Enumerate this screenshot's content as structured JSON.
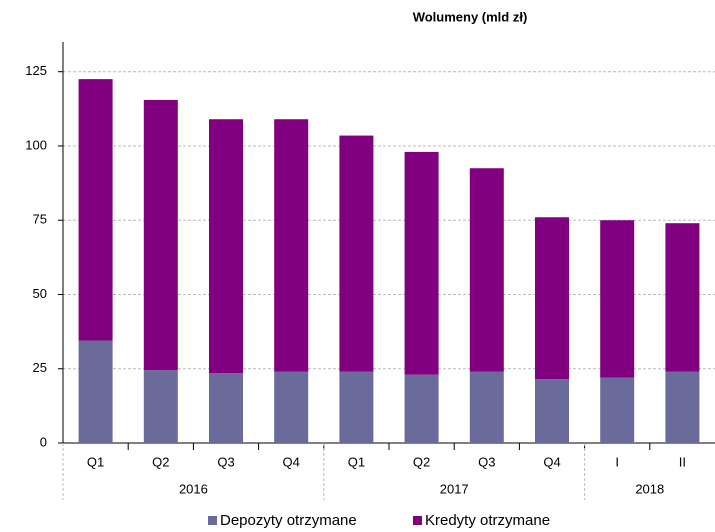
{
  "chart_data": {
    "type": "stacked_bar",
    "title": "Wolumeny (mld zł)",
    "categories": [
      "Q1",
      "Q2",
      "Q3",
      "Q4",
      "Q1",
      "Q2",
      "Q3",
      "Q4",
      "I",
      "II"
    ],
    "groups": [
      {
        "name": "2016",
        "count": 4
      },
      {
        "name": "2017",
        "count": 4
      },
      {
        "name": "2018",
        "count": 2
      }
    ],
    "series": [
      {
        "name": "Depozyty otrzymane",
        "color": "#6b6b9b",
        "values": [
          34.5,
          24.5,
          23.5,
          24,
          24,
          23,
          24,
          21.5,
          22,
          24
        ]
      },
      {
        "name": "Kredyty otrzymane",
        "color": "#800080",
        "values": [
          88,
          91,
          85.5,
          85,
          79.5,
          75,
          68.5,
          54.5,
          53,
          50
        ]
      }
    ],
    "ylim": [
      0,
      135
    ],
    "yticks": [
      0,
      25,
      50,
      75,
      100,
      125
    ],
    "grid": true,
    "legend": "bottom"
  }
}
